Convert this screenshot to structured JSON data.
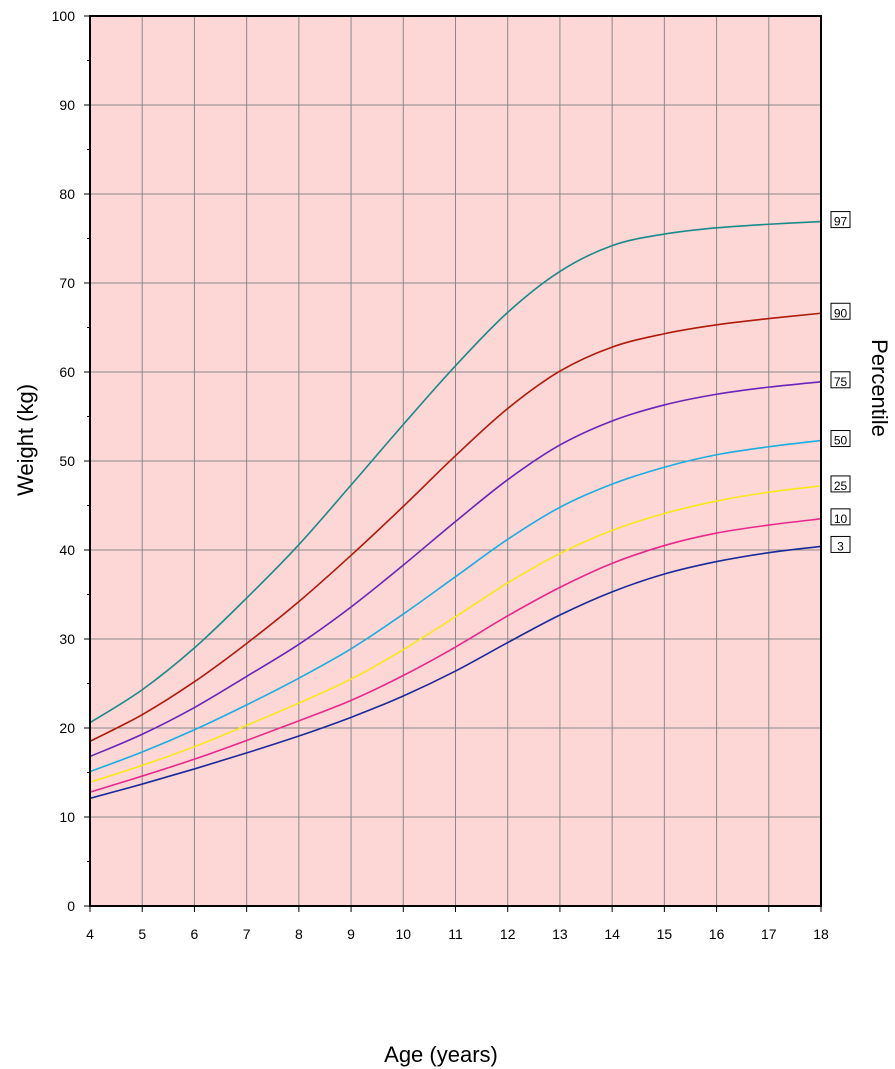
{
  "chart_data": {
    "type": "line",
    "xlabel": "Age (years)",
    "ylabel": "Weight (kg)",
    "right_label": "Percentile",
    "xlim": [
      4,
      18
    ],
    "ylim": [
      0,
      100
    ],
    "x_ticks": [
      4,
      5,
      6,
      7,
      8,
      9,
      10,
      11,
      12,
      13,
      14,
      15,
      16,
      17,
      18
    ],
    "y_ticks": [
      0,
      10,
      20,
      30,
      40,
      50,
      60,
      70,
      80,
      90,
      100
    ],
    "grid": true,
    "plot_background": "#fdd6d6",
    "x": [
      4,
      5,
      6,
      7,
      8,
      9,
      10,
      11,
      12,
      13,
      14,
      15,
      16,
      17,
      18
    ],
    "series": [
      {
        "name": "97",
        "color": "#1a8a8a",
        "values": [
          20.6,
          24.3,
          29.0,
          34.6,
          40.6,
          47.3,
          54.1,
          60.7,
          66.7,
          71.3,
          74.2,
          75.5,
          76.2,
          76.6,
          76.9
        ]
      },
      {
        "name": "90",
        "color": "#b01a0a",
        "values": [
          18.5,
          21.5,
          25.2,
          29.5,
          34.2,
          39.4,
          44.9,
          50.6,
          55.9,
          60.1,
          62.8,
          64.3,
          65.3,
          66.0,
          66.6
        ]
      },
      {
        "name": "75",
        "color": "#6a24b8",
        "values": [
          16.8,
          19.3,
          22.3,
          25.8,
          29.4,
          33.6,
          38.3,
          43.2,
          47.9,
          51.8,
          54.5,
          56.3,
          57.5,
          58.3,
          58.9
        ]
      },
      {
        "name": "50",
        "color": "#1aaee0",
        "values": [
          15.1,
          17.3,
          19.8,
          22.6,
          25.6,
          28.9,
          32.8,
          37.0,
          41.2,
          44.8,
          47.4,
          49.3,
          50.7,
          51.6,
          52.3
        ]
      },
      {
        "name": "25",
        "color": "#f8e818",
        "values": [
          13.9,
          15.8,
          17.9,
          20.3,
          22.8,
          25.5,
          28.8,
          32.5,
          36.3,
          39.6,
          42.2,
          44.1,
          45.5,
          46.5,
          47.2
        ]
      },
      {
        "name": "10",
        "color": "#e8288a",
        "values": [
          12.8,
          14.6,
          16.5,
          18.6,
          20.8,
          23.1,
          25.9,
          29.1,
          32.6,
          35.8,
          38.5,
          40.5,
          41.9,
          42.8,
          43.5
        ]
      },
      {
        "name": "3",
        "color": "#1a2a9a",
        "values": [
          12.1,
          13.7,
          15.4,
          17.2,
          19.1,
          21.2,
          23.6,
          26.4,
          29.6,
          32.7,
          35.3,
          37.3,
          38.7,
          39.7,
          40.4
        ]
      }
    ]
  }
}
